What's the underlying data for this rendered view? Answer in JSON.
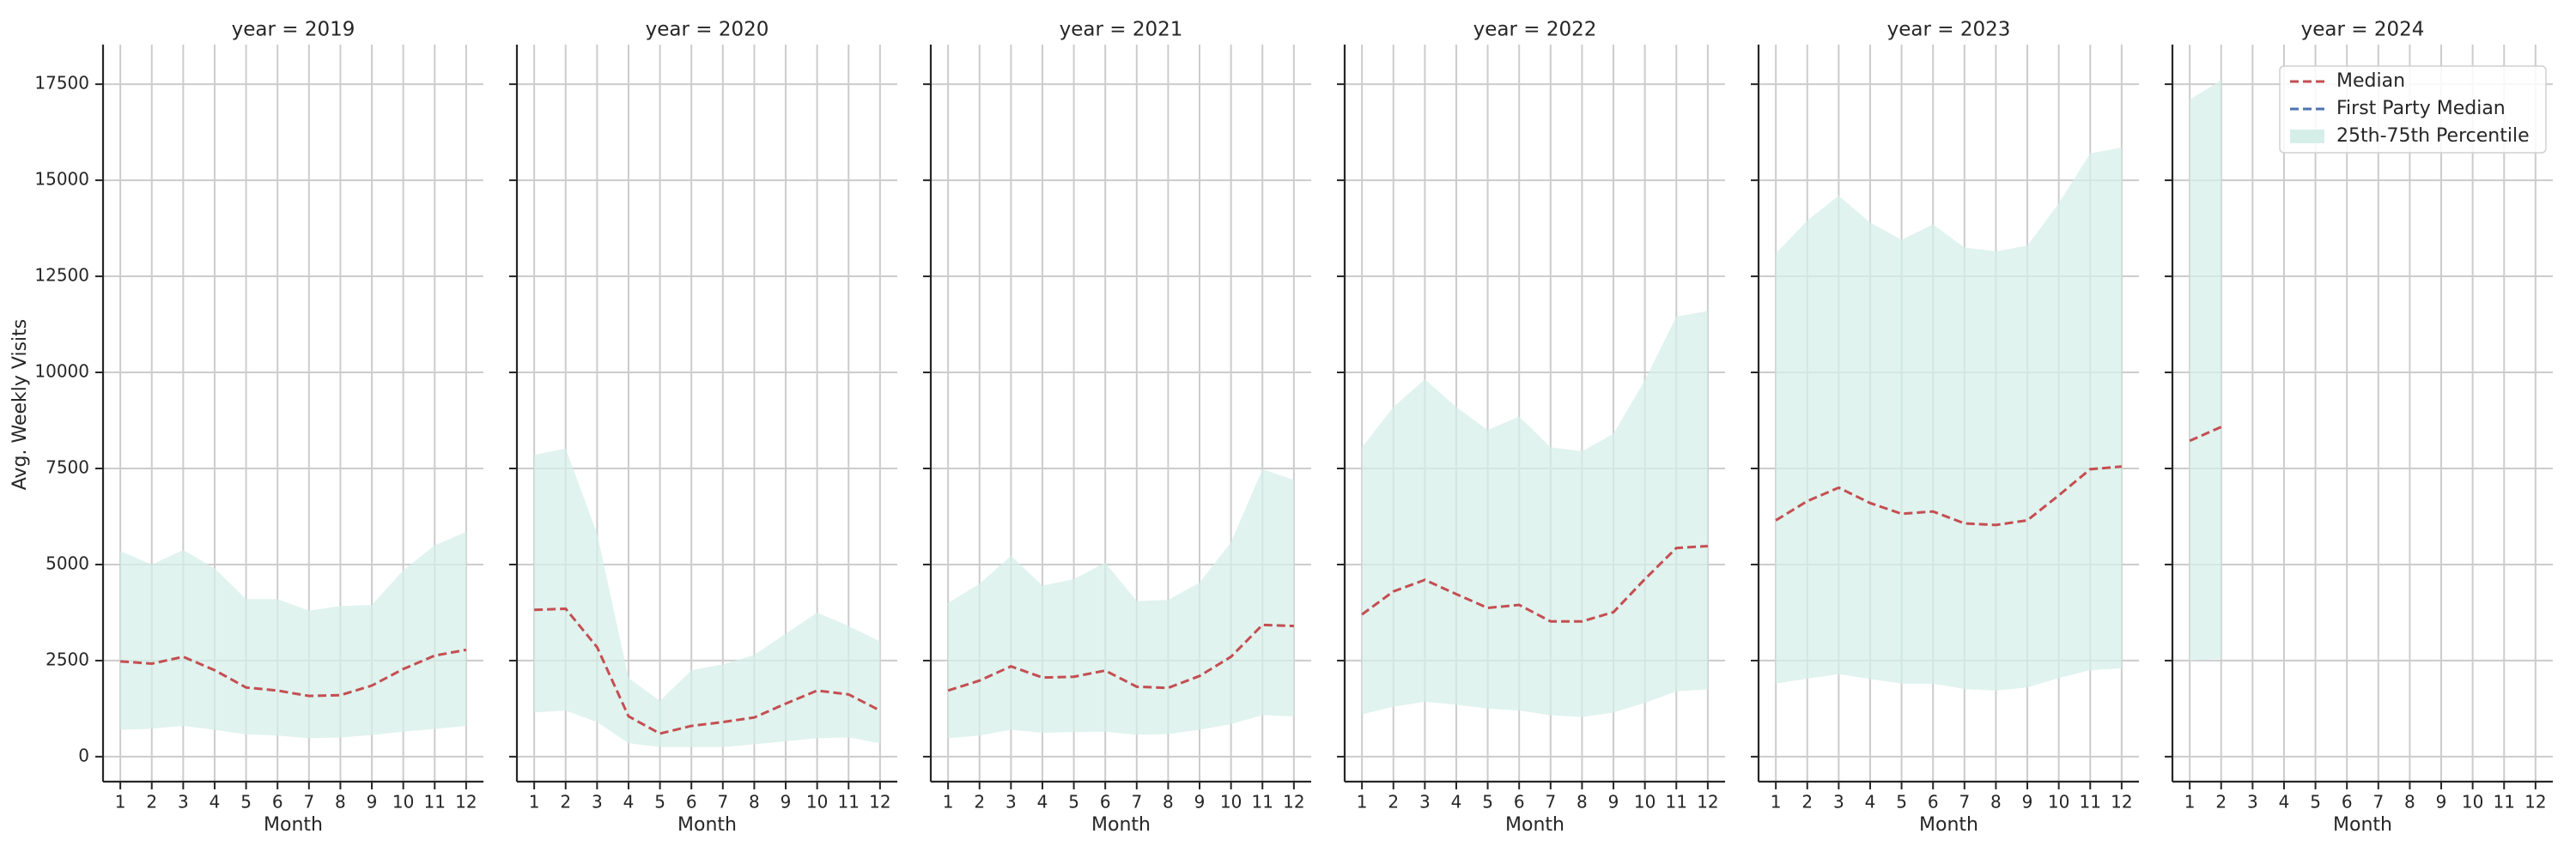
{
  "chart_data": [
    {
      "type": "line",
      "title": "year = 2019",
      "ylabel": "Avg. Weekly Visits",
      "xlabel": "Month",
      "x": [
        1,
        2,
        3,
        4,
        5,
        6,
        7,
        8,
        9,
        10,
        11,
        12
      ],
      "xlim": [
        0.45,
        12.55
      ],
      "xticks": [
        1,
        2,
        3,
        4,
        5,
        6,
        7,
        8,
        9,
        10,
        11,
        12
      ],
      "ylim": [
        -650,
        18530
      ],
      "yticks": [
        0,
        2500,
        5000,
        7500,
        10000,
        12500,
        15000,
        17500
      ],
      "grid": true,
      "series": [
        {
          "color": "#c44e52",
          "values": [
            2480,
            2420,
            2600,
            2250,
            1800,
            1720,
            1580,
            1600,
            1850,
            2280,
            2630,
            2780
          ]
        },
        {
          "color": "#4c72b0",
          "values": [
            null,
            null,
            null,
            null,
            null,
            null,
            null,
            null,
            null,
            null,
            null,
            null
          ]
        },
        {
          "color": "#d5efe8",
          "lower": [
            700,
            730,
            800,
            700,
            580,
            550,
            480,
            500,
            560,
            650,
            720,
            800
          ],
          "upper": [
            5350,
            5000,
            5380,
            4900,
            4100,
            4100,
            3800,
            3920,
            3950,
            4850,
            5500,
            5850
          ]
        }
      ]
    },
    {
      "type": "line",
      "title": "year = 2020",
      "xlabel": "Month",
      "x": [
        1,
        2,
        3,
        4,
        5,
        6,
        7,
        8,
        9,
        10,
        11,
        12
      ],
      "xlim": [
        0.45,
        12.55
      ],
      "xticks": [
        1,
        2,
        3,
        4,
        5,
        6,
        7,
        8,
        9,
        10,
        11,
        12
      ],
      "grid": true,
      "series": [
        {
          "color": "#c44e52",
          "values": [
            3820,
            3850,
            2850,
            1050,
            600,
            800,
            900,
            1020,
            1380,
            1720,
            1620,
            1200
          ]
        },
        {
          "color": "#4c72b0",
          "values": [
            null,
            null,
            null,
            null,
            null,
            null,
            null,
            null,
            null,
            null,
            null,
            null
          ]
        },
        {
          "color": "#d5efe8",
          "lower": [
            1150,
            1200,
            900,
            350,
            250,
            250,
            250,
            320,
            400,
            480,
            500,
            350
          ],
          "upper": [
            7850,
            8020,
            5800,
            2050,
            1450,
            2250,
            2400,
            2650,
            3200,
            3750,
            3400,
            3000
          ]
        }
      ]
    },
    {
      "type": "line",
      "title": "year = 2021",
      "xlabel": "Month",
      "x": [
        1,
        2,
        3,
        4,
        5,
        6,
        7,
        8,
        9,
        10,
        11,
        12
      ],
      "xlim": [
        0.45,
        12.55
      ],
      "xticks": [
        1,
        2,
        3,
        4,
        5,
        6,
        7,
        8,
        9,
        10,
        11,
        12
      ],
      "grid": true,
      "series": [
        {
          "color": "#c44e52",
          "values": [
            1720,
            1980,
            2350,
            2060,
            2080,
            2240,
            1820,
            1790,
            2100,
            2600,
            3430,
            3400
          ]
        },
        {
          "color": "#4c72b0",
          "values": [
            null,
            null,
            null,
            null,
            null,
            null,
            null,
            null,
            null,
            null,
            null,
            null
          ]
        },
        {
          "color": "#d5efe8",
          "lower": [
            480,
            550,
            700,
            620,
            640,
            650,
            570,
            590,
            700,
            850,
            1080,
            1050
          ],
          "upper": [
            4000,
            4500,
            5230,
            4450,
            4620,
            5050,
            4050,
            4080,
            4530,
            5580,
            7480,
            7200
          ]
        }
      ]
    },
    {
      "type": "line",
      "title": "year = 2022",
      "xlabel": "Month",
      "x": [
        1,
        2,
        3,
        4,
        5,
        6,
        7,
        8,
        9,
        10,
        11,
        12
      ],
      "xlim": [
        0.45,
        12.55
      ],
      "xticks": [
        1,
        2,
        3,
        4,
        5,
        6,
        7,
        8,
        9,
        10,
        11,
        12
      ],
      "grid": true,
      "series": [
        {
          "color": "#c44e52",
          "values": [
            3700,
            4300,
            4600,
            4230,
            3870,
            3950,
            3520,
            3520,
            3760,
            4620,
            5430,
            5480
          ]
        },
        {
          "color": "#4c72b0",
          "values": [
            null,
            null,
            null,
            null,
            null,
            null,
            null,
            null,
            null,
            null,
            null,
            null
          ]
        },
        {
          "color": "#d5efe8",
          "lower": [
            1100,
            1300,
            1430,
            1350,
            1250,
            1200,
            1080,
            1030,
            1150,
            1400,
            1700,
            1750
          ],
          "upper": [
            8050,
            9100,
            9820,
            9100,
            8500,
            8850,
            8050,
            7950,
            8400,
            9800,
            11450,
            11600
          ]
        }
      ]
    },
    {
      "type": "line",
      "title": "year = 2023",
      "xlabel": "Month",
      "x": [
        1,
        2,
        3,
        4,
        5,
        6,
        7,
        8,
        9,
        10,
        11,
        12
      ],
      "xlim": [
        0.45,
        12.55
      ],
      "xticks": [
        1,
        2,
        3,
        4,
        5,
        6,
        7,
        8,
        9,
        10,
        11,
        12
      ],
      "grid": true,
      "series": [
        {
          "color": "#c44e52",
          "values": [
            6150,
            6650,
            7000,
            6600,
            6320,
            6380,
            6070,
            6030,
            6150,
            6800,
            7480,
            7550
          ]
        },
        {
          "color": "#4c72b0",
          "values": [
            null,
            null,
            null,
            null,
            null,
            null,
            null,
            null,
            null,
            null,
            null,
            null
          ]
        },
        {
          "color": "#d5efe8",
          "lower": [
            1900,
            2030,
            2150,
            2020,
            1900,
            1900,
            1760,
            1720,
            1800,
            2050,
            2250,
            2300
          ],
          "upper": [
            13100,
            13950,
            14600,
            13900,
            13450,
            13850,
            13250,
            13150,
            13300,
            14400,
            15700,
            15850
          ]
        }
      ]
    },
    {
      "type": "line",
      "title": "year = 2024",
      "xlabel": "Month",
      "legend": "upper right",
      "x": [
        1,
        2,
        3,
        4,
        5,
        6,
        7,
        8,
        9,
        10,
        11,
        12
      ],
      "xlim": [
        0.45,
        12.55
      ],
      "xticks": [
        1,
        2,
        3,
        4,
        5,
        6,
        7,
        8,
        9,
        10,
        11,
        12
      ],
      "grid": true,
      "series": [
        {
          "name": "Median",
          "color": "#c44e52",
          "values": [
            8220,
            8580,
            null,
            null,
            null,
            null,
            null,
            null,
            null,
            null,
            null,
            null
          ]
        },
        {
          "name": "First Party Median",
          "color": "#4c72b0",
          "values": [
            null,
            null,
            null,
            null,
            null,
            null,
            null,
            null,
            null,
            null,
            null,
            null
          ]
        },
        {
          "name": "25th-75th Percentile",
          "color": "#d5efe8",
          "lower": [
            2500,
            2550,
            null,
            null,
            null,
            null,
            null,
            null,
            null,
            null,
            null,
            null
          ],
          "upper": [
            17100,
            17600,
            null,
            null,
            null,
            null,
            null,
            null,
            null,
            null,
            null,
            null
          ]
        }
      ]
    }
  ]
}
